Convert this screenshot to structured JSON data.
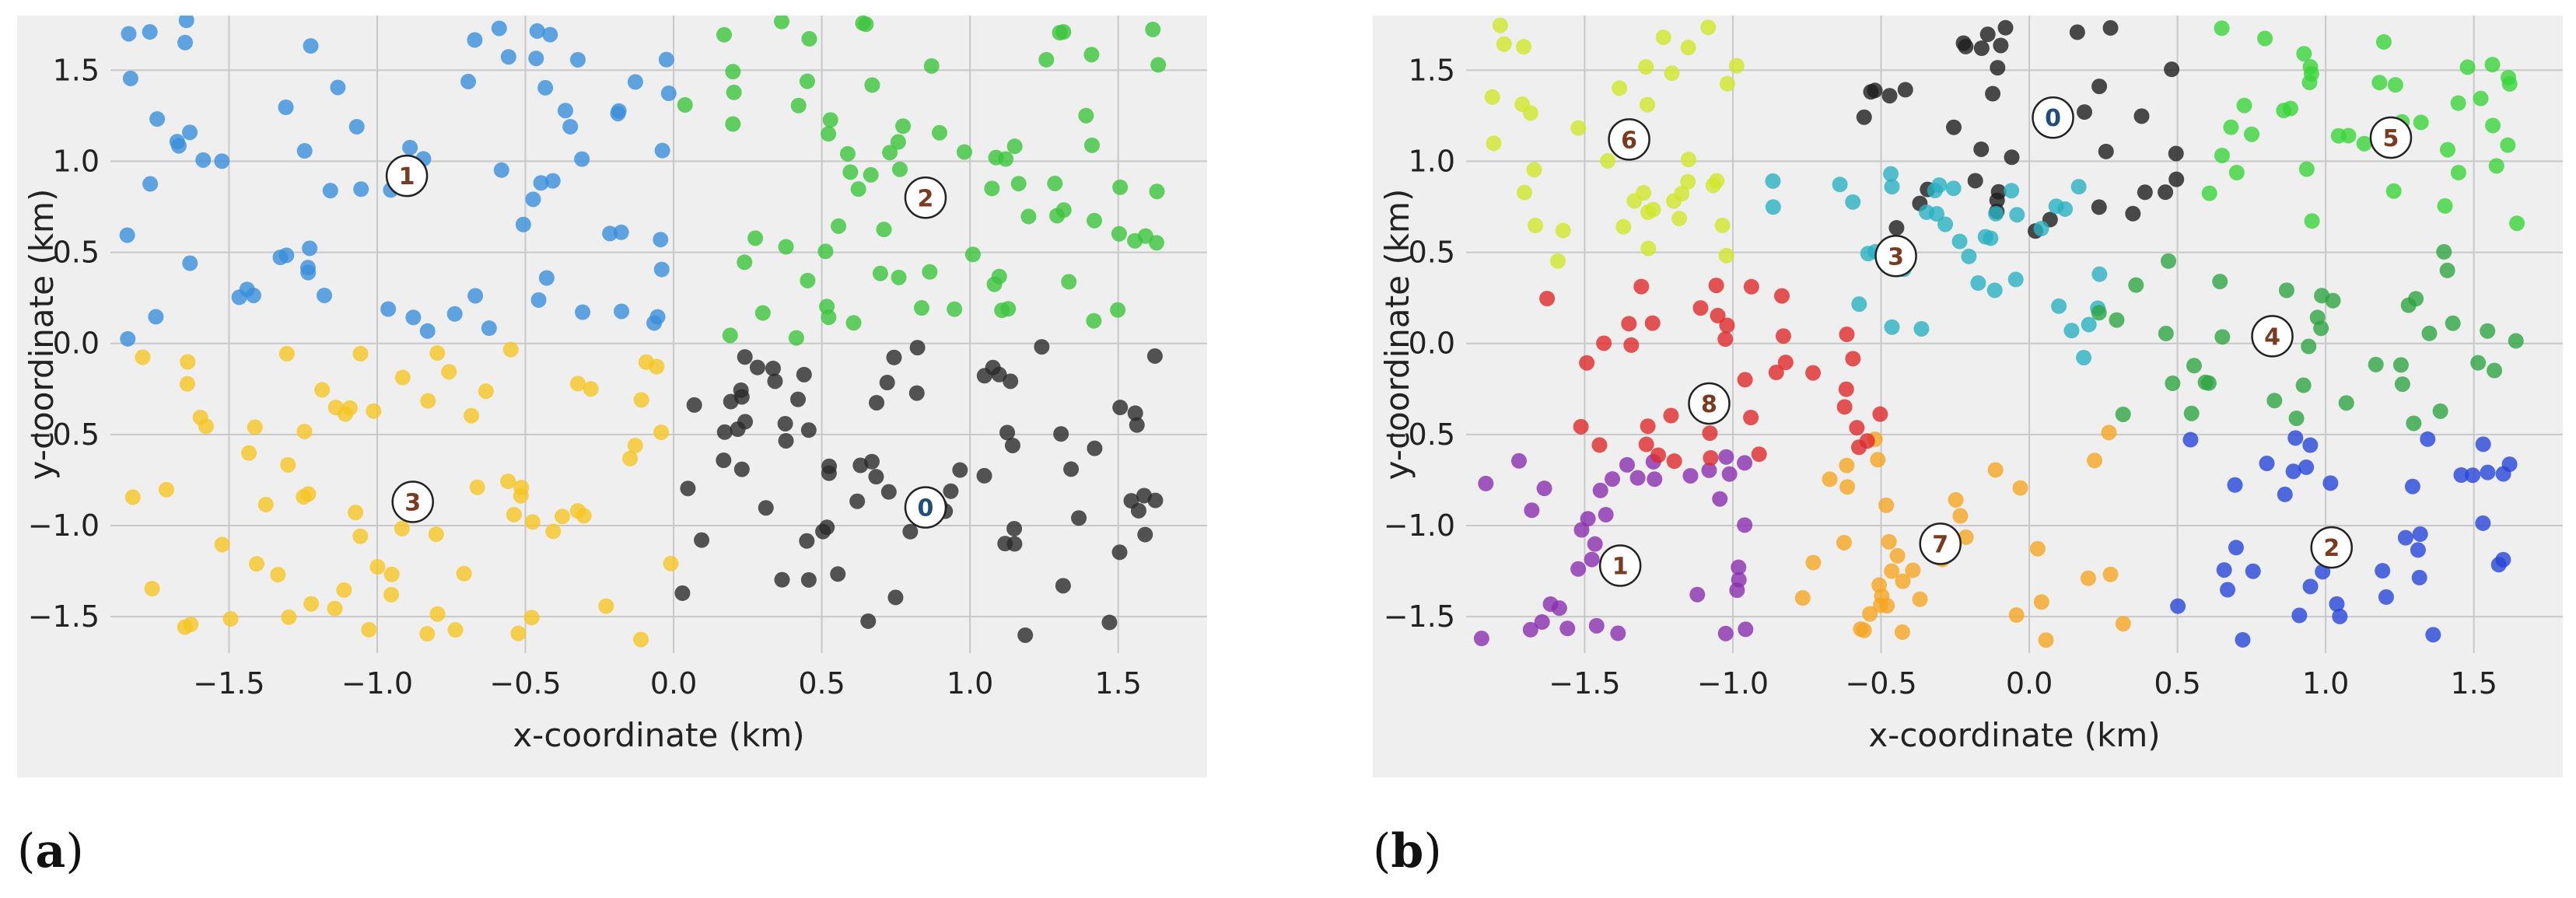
{
  "figure": {
    "panels": [
      {
        "label_open": "(",
        "label_letter": "a",
        "label_close": ")"
      },
      {
        "label_open": "(",
        "label_letter": "b",
        "label_close": ")"
      }
    ]
  },
  "chart_data": [
    {
      "type": "scatter",
      "title": "",
      "xlabel": "x-coordinate (km)",
      "ylabel": "y-coordinate (km)",
      "xlim": [
        -1.9,
        1.8
      ],
      "ylim": [
        -1.7,
        1.8
      ],
      "xticks": [
        -1.5,
        -1.0,
        -0.5,
        0.0,
        0.5,
        1.0,
        1.5
      ],
      "xtick_labels": [
        "−1.5",
        "−1.0",
        "−0.5",
        "0.0",
        "0.5",
        "1.0",
        "1.5"
      ],
      "yticks": [
        -1.5,
        -1.0,
        -0.5,
        0.0,
        0.5,
        1.0,
        1.5
      ],
      "ytick_labels": [
        "−1.5",
        "−1.0",
        "−0.5",
        "0.0",
        "0.5",
        "1.0",
        "1.5"
      ],
      "grid": true,
      "background": "#efefef",
      "point_alpha": 0.8,
      "sample_points_per_cluster": 75,
      "clusters": [
        {
          "id": "0",
          "color": "#2a2a2a",
          "x_range": [
            0.0,
            1.65
          ],
          "y_range": [
            -1.65,
            0.0
          ],
          "centroid": [
            0.85,
            -0.9
          ],
          "label_color": "#1f4e79"
        },
        {
          "id": "1",
          "color": "#3a8fdc",
          "x_range": [
            -1.85,
            0.0
          ],
          "y_range": [
            0.0,
            1.78
          ],
          "centroid": [
            -0.9,
            0.92
          ],
          "label_color": "#7a3b20"
        },
        {
          "id": "2",
          "color": "#3cc43c",
          "x_range": [
            0.0,
            1.65
          ],
          "y_range": [
            0.0,
            1.78
          ],
          "centroid": [
            0.85,
            0.8
          ],
          "label_color": "#7a3b20"
        },
        {
          "id": "3",
          "color": "#f5c523",
          "x_range": [
            -1.85,
            0.0
          ],
          "y_range": [
            -1.65,
            0.0
          ],
          "centroid": [
            -0.88,
            -0.87
          ],
          "label_color": "#7a3b20"
        }
      ]
    },
    {
      "type": "scatter",
      "title": "",
      "xlabel": "x-coordinate (km)",
      "ylabel": "y-coordinate (km)",
      "xlim": [
        -1.9,
        1.8
      ],
      "ylim": [
        -1.7,
        1.8
      ],
      "xticks": [
        -1.5,
        -1.0,
        -0.5,
        0.0,
        0.5,
        1.0,
        1.5
      ],
      "xtick_labels": [
        "−1.5",
        "−1.0",
        "−0.5",
        "0.0",
        "0.5",
        "1.0",
        "1.5"
      ],
      "yticks": [
        -1.5,
        -1.0,
        -0.5,
        0.0,
        0.5,
        1.0,
        1.5
      ],
      "ytick_labels": [
        "−1.5",
        "−1.0",
        "−0.5",
        "0.0",
        "0.5",
        "1.0",
        "1.5"
      ],
      "grid": true,
      "background": "#efefef",
      "point_alpha": 0.8,
      "sample_points_per_cluster": 38,
      "clusters": [
        {
          "id": "0",
          "color": "#1e1e1e",
          "x_range": [
            -0.6,
            0.5
          ],
          "y_range": [
            0.6,
            1.75
          ],
          "centroid": [
            0.08,
            1.24
          ],
          "label_color": "#1f4e79"
        },
        {
          "id": "1",
          "color": "#8a2fb0",
          "x_range": [
            -1.85,
            -0.95
          ],
          "y_range": [
            -1.65,
            -0.6
          ],
          "centroid": [
            -1.38,
            -1.22
          ],
          "label_color": "#7a3b20"
        },
        {
          "id": "2",
          "color": "#2746d8",
          "x_range": [
            0.45,
            1.65
          ],
          "y_range": [
            -1.65,
            -0.5
          ],
          "centroid": [
            1.02,
            -1.12
          ],
          "label_color": "#7a3b20"
        },
        {
          "id": "3",
          "color": "#2ab0c2",
          "x_range": [
            -0.9,
            0.25
          ],
          "y_range": [
            -0.1,
            1.05
          ],
          "centroid": [
            -0.45,
            0.48
          ],
          "label_color": "#7a3b20"
        },
        {
          "id": "4",
          "color": "#2ea544",
          "x_range": [
            0.1,
            1.65
          ],
          "y_range": [
            -0.45,
            0.55
          ],
          "centroid": [
            0.82,
            0.04
          ],
          "label_color": "#7a3b20"
        },
        {
          "id": "5",
          "color": "#3ad63a",
          "x_range": [
            0.6,
            1.65
          ],
          "y_range": [
            0.55,
            1.75
          ],
          "centroid": [
            1.22,
            1.13
          ],
          "label_color": "#7a3b20"
        },
        {
          "id": "6",
          "color": "#cfe62a",
          "x_range": [
            -1.85,
            -0.95
          ],
          "y_range": [
            0.45,
            1.78
          ],
          "centroid": [
            -1.35,
            1.12
          ],
          "label_color": "#7a3b20"
        },
        {
          "id": "7",
          "color": "#f5a623",
          "x_range": [
            -0.8,
            0.35
          ],
          "y_range": [
            -1.65,
            -0.4
          ],
          "centroid": [
            -0.3,
            -1.1
          ],
          "label_color": "#7a3b20"
        },
        {
          "id": "8",
          "color": "#e02b2b",
          "x_range": [
            -1.65,
            -0.5
          ],
          "y_range": [
            -0.7,
            0.35
          ],
          "centroid": [
            -1.08,
            -0.33
          ],
          "label_color": "#7a3b20"
        }
      ]
    }
  ]
}
